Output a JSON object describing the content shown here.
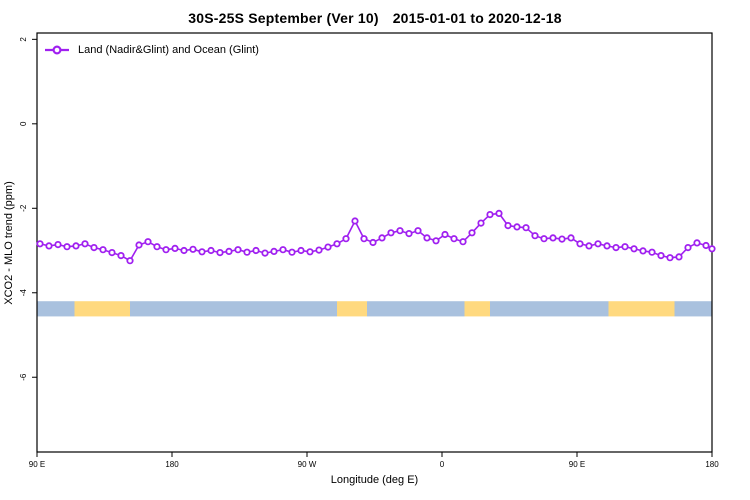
{
  "title": {
    "main": "30S-25S September (Ver 10)",
    "dates": "2015-01-01 to 2020-12-18"
  },
  "legend": {
    "label": "Land (Nadir&Glint) and Ocean (Glint)",
    "marker": "open-circle-on-line",
    "color": "#A020F0"
  },
  "chart_data": {
    "type": "line",
    "title": "30S-25S September (Ver 10)   2015-01-01 to 2020-12-18",
    "xlabel": "Longitude (deg E)",
    "ylabel": "XCO2 - MLO trend (ppm)",
    "xlim": [
      90,
      540
    ],
    "ylim": [
      -7.77,
      2.15
    ],
    "grid": false,
    "legend_position": "top-left",
    "x_ticks": [
      {
        "value": 90,
        "label": "90 E"
      },
      {
        "value": 180,
        "label": "180"
      },
      {
        "value": 270,
        "label": "90 W"
      },
      {
        "value": 360,
        "label": "0"
      },
      {
        "value": 450,
        "label": "90 E"
      },
      {
        "value": 540,
        "label": "180"
      }
    ],
    "y_ticks": [
      {
        "value": 2,
        "label": "2"
      },
      {
        "value": 0,
        "label": "0"
      },
      {
        "value": -2,
        "label": "-2"
      },
      {
        "value": -4,
        "label": "-4"
      },
      {
        "value": -6,
        "label": "-6"
      }
    ],
    "series": [
      {
        "name": "Land (Nadir&Glint) and Ocean (Glint)",
        "color": "#A020F0",
        "marker": "open-circle",
        "x": [
          92,
          98,
          104,
          110,
          116,
          122,
          128,
          134,
          140,
          146,
          152,
          158,
          164,
          170,
          176,
          182,
          188,
          194,
          200,
          206,
          212,
          218,
          224,
          230,
          236,
          242,
          248,
          254,
          260,
          266,
          272,
          278,
          284,
          290,
          296,
          302,
          308,
          314,
          320,
          326,
          332,
          338,
          344,
          350,
          356,
          362,
          368,
          374,
          380,
          386,
          392,
          398,
          404,
          410,
          416,
          422,
          428,
          434,
          440,
          446,
          452,
          458,
          464,
          470,
          476,
          482,
          488,
          494,
          500,
          506,
          512,
          518,
          524,
          530,
          536,
          540
        ],
        "y": [
          -2.84,
          -2.89,
          -2.86,
          -2.91,
          -2.89,
          -2.84,
          -2.93,
          -2.98,
          -3.05,
          -3.12,
          -3.24,
          -2.87,
          -2.79,
          -2.91,
          -2.98,
          -2.95,
          -3.0,
          -2.97,
          -3.03,
          -3.0,
          -3.05,
          -3.02,
          -2.98,
          -3.04,
          -3.0,
          -3.06,
          -3.02,
          -2.98,
          -3.04,
          -3.0,
          -3.03,
          -2.99,
          -2.92,
          -2.84,
          -2.72,
          -2.3,
          -2.72,
          -2.81,
          -2.7,
          -2.58,
          -2.53,
          -2.6,
          -2.53,
          -2.7,
          -2.77,
          -2.62,
          -2.72,
          -2.79,
          -2.58,
          -2.35,
          -2.15,
          -2.12,
          -2.41,
          -2.44,
          -2.46,
          -2.65,
          -2.72,
          -2.7,
          -2.73,
          -2.7,
          -2.84,
          -2.89,
          -2.84,
          -2.89,
          -2.93,
          -2.91,
          -2.96,
          -3.01,
          -3.04,
          -3.12,
          -3.17,
          -3.15,
          -2.93,
          -2.82,
          -2.88,
          -2.96
        ]
      }
    ],
    "band": {
      "description": "land/ocean indicator strip",
      "y_top": -4.2,
      "y_bottom": -4.56,
      "ocean_color": "#A9C1DE",
      "land_color": "#FFD97F",
      "segments": [
        {
          "from": 90,
          "to": 115,
          "type": "ocean"
        },
        {
          "from": 115,
          "to": 152,
          "type": "land"
        },
        {
          "from": 152,
          "to": 290,
          "type": "ocean"
        },
        {
          "from": 290,
          "to": 310,
          "type": "land"
        },
        {
          "from": 310,
          "to": 375,
          "type": "ocean"
        },
        {
          "from": 375,
          "to": 392,
          "type": "land"
        },
        {
          "from": 392,
          "to": 471,
          "type": "ocean"
        },
        {
          "from": 471,
          "to": 515,
          "type": "land"
        },
        {
          "from": 515,
          "to": 540,
          "type": "ocean"
        }
      ]
    }
  }
}
